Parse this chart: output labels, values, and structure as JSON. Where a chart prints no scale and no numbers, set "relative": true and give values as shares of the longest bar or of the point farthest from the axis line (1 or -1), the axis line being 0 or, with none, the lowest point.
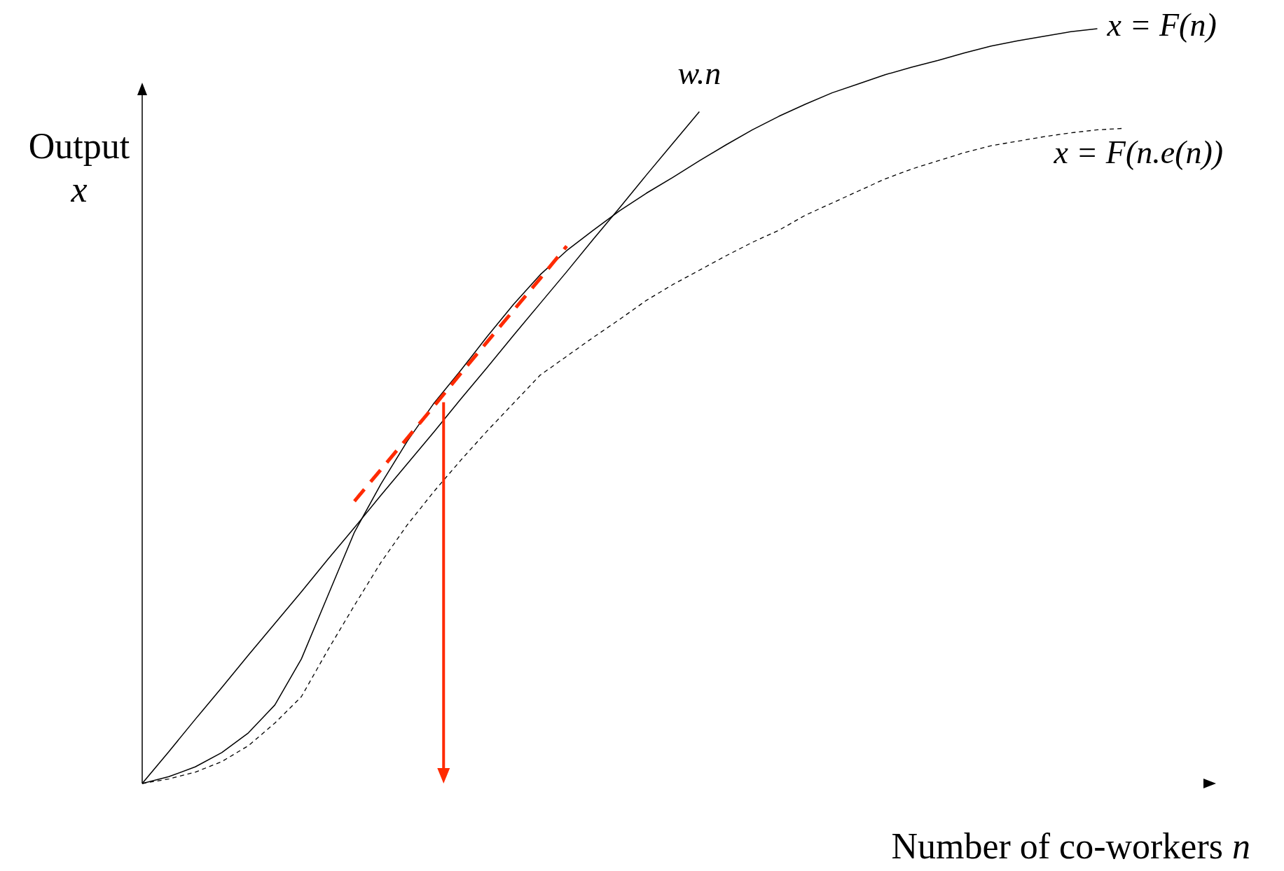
{
  "chart_data": {
    "type": "line",
    "relative": true,
    "marker": "none",
    "xlabel": "Number of co-workers n",
    "ylabel": "Output x",
    "categories": [
      null,
      null,
      null,
      null,
      null,
      null,
      null,
      null,
      null,
      null,
      null,
      null,
      null,
      null,
      null,
      null,
      null,
      null,
      null,
      null,
      null,
      null,
      null,
      null,
      null,
      null,
      null,
      null,
      null,
      null,
      null,
      null,
      null,
      null,
      null,
      null,
      null,
      null,
      null,
      null,
      null
    ],
    "series": [
      {
        "name": "x = F(n)",
        "color": "#000000",
        "line_style": "solid",
        "values": [
          0,
          0.009,
          0.022,
          0.041,
          0.067,
          0.104,
          0.165,
          0.249,
          0.333,
          0.397,
          0.454,
          0.504,
          0.547,
          0.592,
          0.635,
          0.674,
          0.706,
          0.733,
          0.759,
          0.782,
          0.803,
          0.825,
          0.846,
          0.866,
          0.884,
          0.9,
          0.915,
          0.927,
          0.939,
          0.949,
          0.958,
          0.968,
          0.977,
          0.984,
          0.99,
          0.996,
          1,
          null,
          null,
          null,
          null
        ]
      },
      {
        "name": "x = F(n.e(n))",
        "color": "#000000",
        "line_style": "dashed",
        "values": [
          0,
          0.006,
          0.015,
          0.029,
          0.05,
          0.08,
          0.115,
          0.177,
          0.236,
          0.293,
          0.343,
          0.387,
          0.428,
          0.467,
          0.504,
          0.541,
          0.566,
          0.591,
          0.615,
          0.64,
          0.661,
          0.68,
          0.699,
          0.717,
          0.733,
          0.753,
          0.769,
          0.785,
          0.801,
          0.814,
          0.825,
          0.836,
          0.845,
          0.851,
          0.857,
          0.862,
          0.866,
          0.868,
          null,
          null,
          null
        ]
      },
      {
        "name": "w.n",
        "color": "#000000",
        "line_style": "solid",
        "values": [
          0,
          0.042,
          0.085,
          0.127,
          0.17,
          0.212,
          0.254,
          0.297,
          0.339,
          0.382,
          0.424,
          0.466,
          0.509,
          0.551,
          0.594,
          0.636,
          0.678,
          0.721,
          0.763,
          0.806,
          0.848,
          0.89,
          null,
          null,
          null,
          null,
          null,
          null,
          null,
          null,
          null,
          null,
          null,
          null,
          null,
          null,
          null,
          null,
          null,
          null,
          null
        ]
      },
      {
        "color": "#ff2a00",
        "line_style": "dashed",
        "values": [
          null,
          null,
          null,
          null,
          null,
          null,
          null,
          null,
          0.374,
          0.416,
          0.458,
          0.5,
          0.543,
          0.585,
          0.627,
          0.669,
          0.712,
          null,
          null,
          null,
          null,
          null,
          null,
          null,
          null,
          null,
          null,
          null,
          null,
          null,
          null,
          null,
          null,
          null,
          null,
          null,
          null,
          null,
          null,
          null,
          null
        ]
      }
    ]
  }
}
